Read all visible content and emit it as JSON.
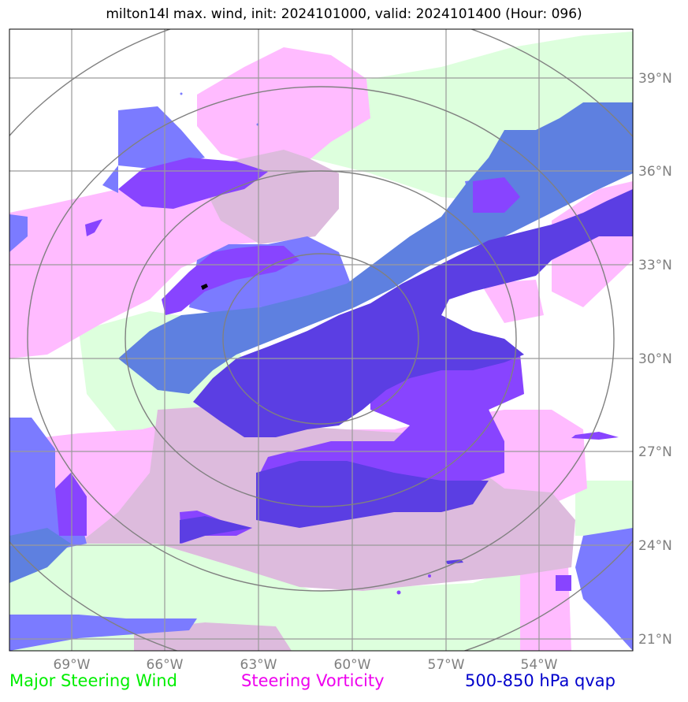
{
  "title": "milton14l max. wind, init: 2024101000, valid: 2024101400 (Hour: 096)",
  "map": {
    "lon_ticks": [
      "69°W",
      "66°W",
      "63°W",
      "60°W",
      "57°W",
      "54°W"
    ],
    "lat_ticks": [
      "39°N",
      "36°N",
      "33°N",
      "30°N",
      "27°N",
      "24°N",
      "21°N"
    ],
    "extent": {
      "lon_min": -71,
      "lon_max": -51,
      "lat_min": 20.6,
      "lat_max": 40.5
    },
    "storm_center": {
      "lon": -61.0,
      "lat": 30.6
    },
    "range_rings": 4
  },
  "colors": {
    "wind": "#ddffdd",
    "vorticity": "#ffbbff",
    "vort_wind_overlap": "#ddbbdd",
    "qvap_light": "#7b7bff",
    "qvap_medium": "#8844ff",
    "qvap_dark": "#5b3ee3",
    "qvap_steel": "#5e80e0"
  },
  "legend": [
    {
      "label": "Major Steering Wind",
      "color": "#00ee00"
    },
    {
      "label": "Steering Vorticity",
      "color": "#ee00ee"
    },
    {
      "label": "500-850 hPa qvap",
      "color": "#0000cc"
    }
  ]
}
